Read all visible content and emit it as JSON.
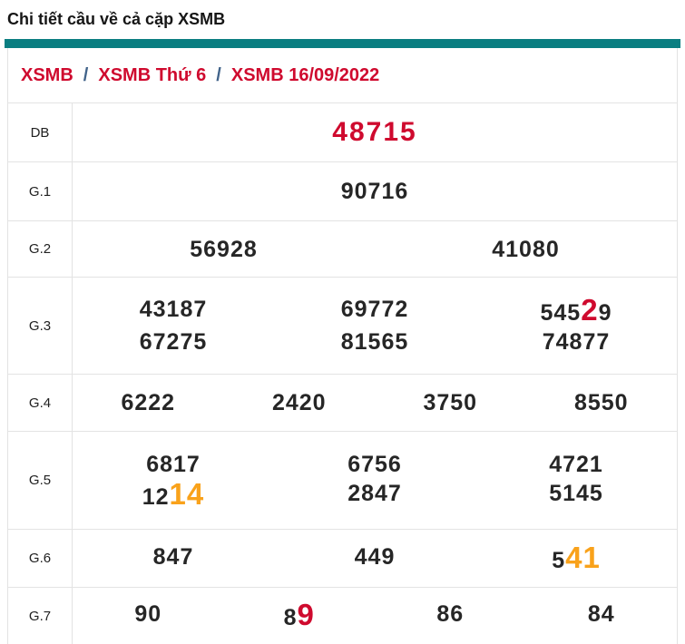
{
  "page": {
    "title": "Chi tiết cầu về cả cặp XSMB"
  },
  "colors": {
    "accent_teal": "#0a7e81",
    "crimson": "#cf0a2e",
    "orange": "#f9a21b",
    "number_text": "#262626",
    "breadcrumb_separator": "#41638a",
    "border": "#e3e3e3"
  },
  "breadcrumb": {
    "separator": "/",
    "items": [
      "XSMB",
      "XSMB Thứ 6",
      "XSMB 16/09/2022"
    ]
  },
  "table": {
    "rows": [
      {
        "label": "DB",
        "variant": "db",
        "lines": [
          [
            {
              "segments": [
                {
                  "text": "48715"
                }
              ]
            }
          ]
        ]
      },
      {
        "label": "G.1",
        "lines": [
          [
            {
              "segments": [
                {
                  "text": "90716"
                }
              ]
            }
          ]
        ]
      },
      {
        "label": "G.2",
        "lines": [
          [
            {
              "segments": [
                {
                  "text": "56928"
                }
              ]
            },
            {
              "segments": [
                {
                  "text": "41080"
                }
              ]
            }
          ]
        ]
      },
      {
        "label": "G.3",
        "lines": [
          [
            {
              "segments": [
                {
                  "text": "43187"
                }
              ]
            },
            {
              "segments": [
                {
                  "text": "69772"
                }
              ]
            },
            {
              "segments": [
                {
                  "text": "545"
                },
                {
                  "text": "2",
                  "highlight": "red"
                },
                {
                  "text": "9"
                }
              ]
            }
          ],
          [
            {
              "segments": [
                {
                  "text": "67275"
                }
              ]
            },
            {
              "segments": [
                {
                  "text": "81565"
                }
              ]
            },
            {
              "segments": [
                {
                  "text": "74877"
                }
              ]
            }
          ]
        ]
      },
      {
        "label": "G.4",
        "lines": [
          [
            {
              "segments": [
                {
                  "text": "6222"
                }
              ]
            },
            {
              "segments": [
                {
                  "text": "2420"
                }
              ]
            },
            {
              "segments": [
                {
                  "text": "3750"
                }
              ]
            },
            {
              "segments": [
                {
                  "text": "8550"
                }
              ]
            }
          ]
        ]
      },
      {
        "label": "G.5",
        "lines": [
          [
            {
              "segments": [
                {
                  "text": "6817"
                }
              ]
            },
            {
              "segments": [
                {
                  "text": "6756"
                }
              ]
            },
            {
              "segments": [
                {
                  "text": "4721"
                }
              ]
            }
          ],
          [
            {
              "segments": [
                {
                  "text": "12"
                },
                {
                  "text": "14",
                  "highlight": "orange"
                }
              ]
            },
            {
              "segments": [
                {
                  "text": "2847"
                }
              ]
            },
            {
              "segments": [
                {
                  "text": "5145"
                }
              ]
            }
          ]
        ]
      },
      {
        "label": "G.6",
        "lines": [
          [
            {
              "segments": [
                {
                  "text": "847"
                }
              ]
            },
            {
              "segments": [
                {
                  "text": "449"
                }
              ]
            },
            {
              "segments": [
                {
                  "text": "5"
                },
                {
                  "text": "41",
                  "highlight": "orange"
                }
              ]
            }
          ]
        ]
      },
      {
        "label": "G.7",
        "lines": [
          [
            {
              "segments": [
                {
                  "text": "90"
                }
              ]
            },
            {
              "segments": [
                {
                  "text": "8"
                },
                {
                  "text": "9",
                  "highlight": "red"
                }
              ]
            },
            {
              "segments": [
                {
                  "text": "86"
                }
              ]
            },
            {
              "segments": [
                {
                  "text": "84"
                }
              ]
            }
          ]
        ]
      }
    ]
  }
}
